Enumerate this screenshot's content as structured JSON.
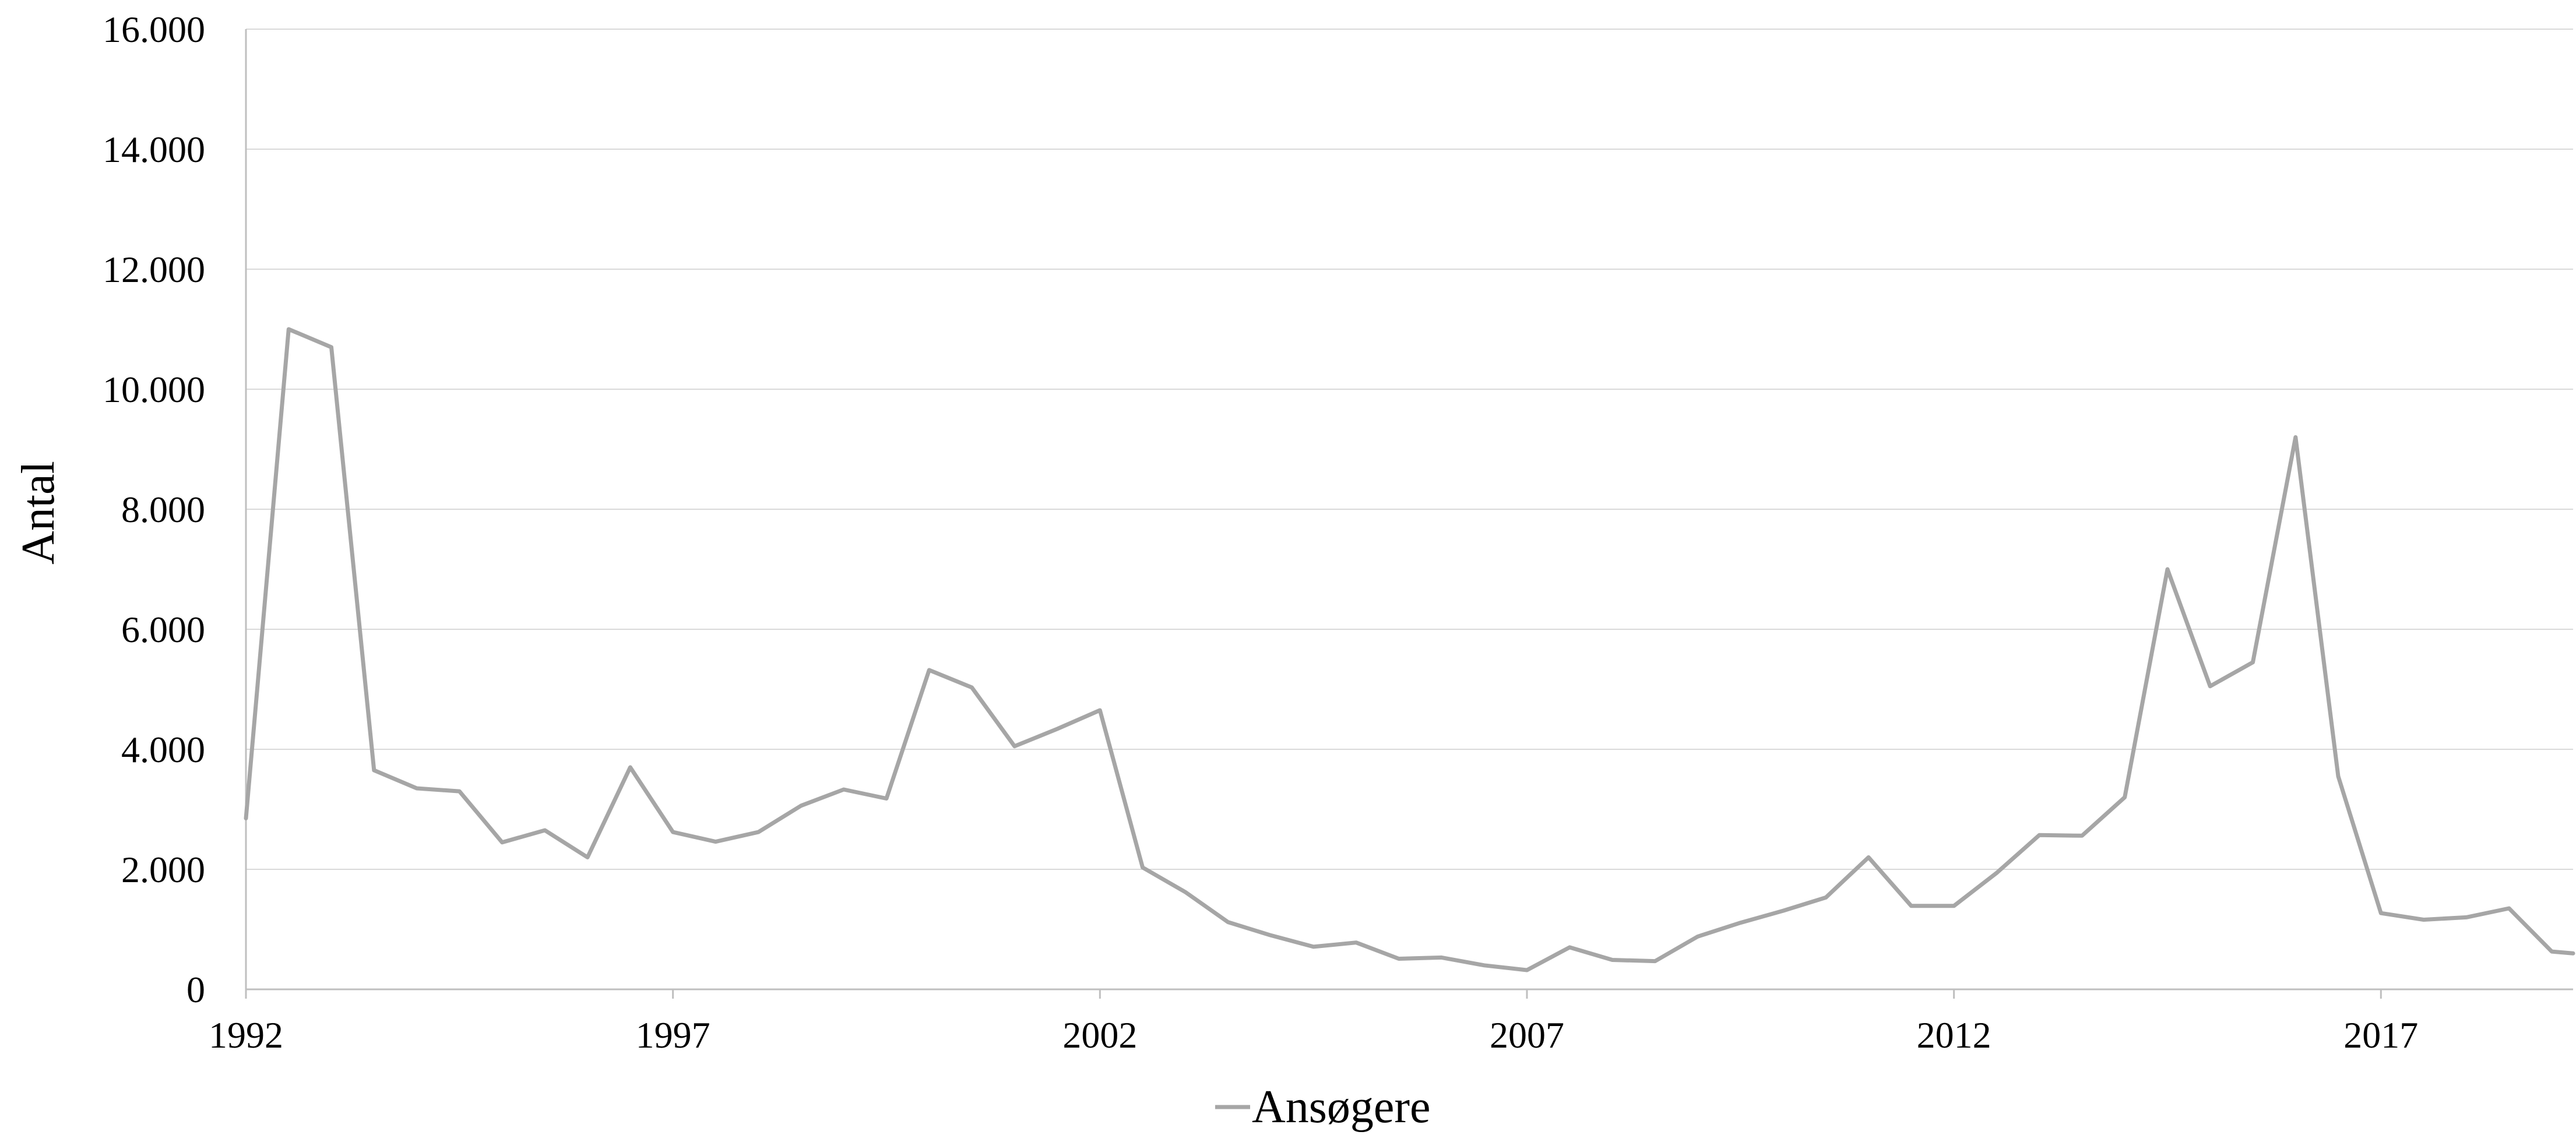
{
  "chart_data": {
    "type": "line",
    "title": "",
    "xlabel": "",
    "ylabel": "Antal",
    "ylim": [
      0,
      16000
    ],
    "yticks": [
      {
        "value": 0,
        "label": "0"
      },
      {
        "value": 2000,
        "label": "2.000"
      },
      {
        "value": 4000,
        "label": "4.000"
      },
      {
        "value": 6000,
        "label": "6.000"
      },
      {
        "value": 8000,
        "label": "8.000"
      },
      {
        "value": 10000,
        "label": "10.000"
      },
      {
        "value": 12000,
        "label": "12.000"
      },
      {
        "value": 14000,
        "label": "14.000"
      },
      {
        "value": 16000,
        "label": "16.000"
      }
    ],
    "xlim": [
      1992,
      2019.25
    ],
    "xticks": [
      {
        "value": 1992,
        "label": "1992"
      },
      {
        "value": 1997,
        "label": "1997"
      },
      {
        "value": 2002,
        "label": "2002"
      },
      {
        "value": 2007,
        "label": "2007"
      },
      {
        "value": 2012,
        "label": "2012"
      },
      {
        "value": 2017,
        "label": "2017"
      }
    ],
    "grid": true,
    "legend": "bottom",
    "series": [
      {
        "name": "Ansøgere",
        "color": "#a6a6a6",
        "x": [
          1992.0,
          1992.5,
          1993.0,
          1993.5,
          1994.0,
          1994.5,
          1995.0,
          1995.5,
          1996.0,
          1996.5,
          1997.0,
          1997.5,
          1998.0,
          1998.5,
          1999.0,
          1999.5,
          2000.0,
          2000.5,
          2001.0,
          2001.5,
          2002.0,
          2002.5,
          2003.0,
          2003.5,
          2004.0,
          2004.5,
          2005.0,
          2005.5,
          2006.0,
          2006.5,
          2007.0,
          2007.5,
          2008.0,
          2008.5,
          2009.0,
          2009.5,
          2010.0,
          2010.5,
          2011.0,
          2011.5,
          2012.0,
          2012.5,
          2013.0,
          2013.5,
          2014.0,
          2014.5,
          2015.0,
          2015.5,
          2016.0,
          2016.5,
          2017.0,
          2017.5,
          2018.0,
          2018.5,
          2019.0,
          2019.25
        ],
        "y": [
          2850,
          11000,
          10700,
          3650,
          3350,
          3300,
          2450,
          2650,
          2200,
          3700,
          2620,
          2460,
          2620,
          3060,
          3330,
          3180,
          5320,
          5030,
          4050,
          4340,
          4650,
          2030,
          1620,
          1120,
          900,
          710,
          780,
          510,
          530,
          400,
          320,
          700,
          490,
          470,
          880,
          1110,
          1310,
          1530,
          2200,
          1390,
          1390,
          1940,
          2570,
          2560,
          3200,
          7000,
          5050,
          5450,
          9200,
          3550,
          1270,
          1160,
          1200,
          1350,
          630,
          600
        ]
      }
    ]
  }
}
